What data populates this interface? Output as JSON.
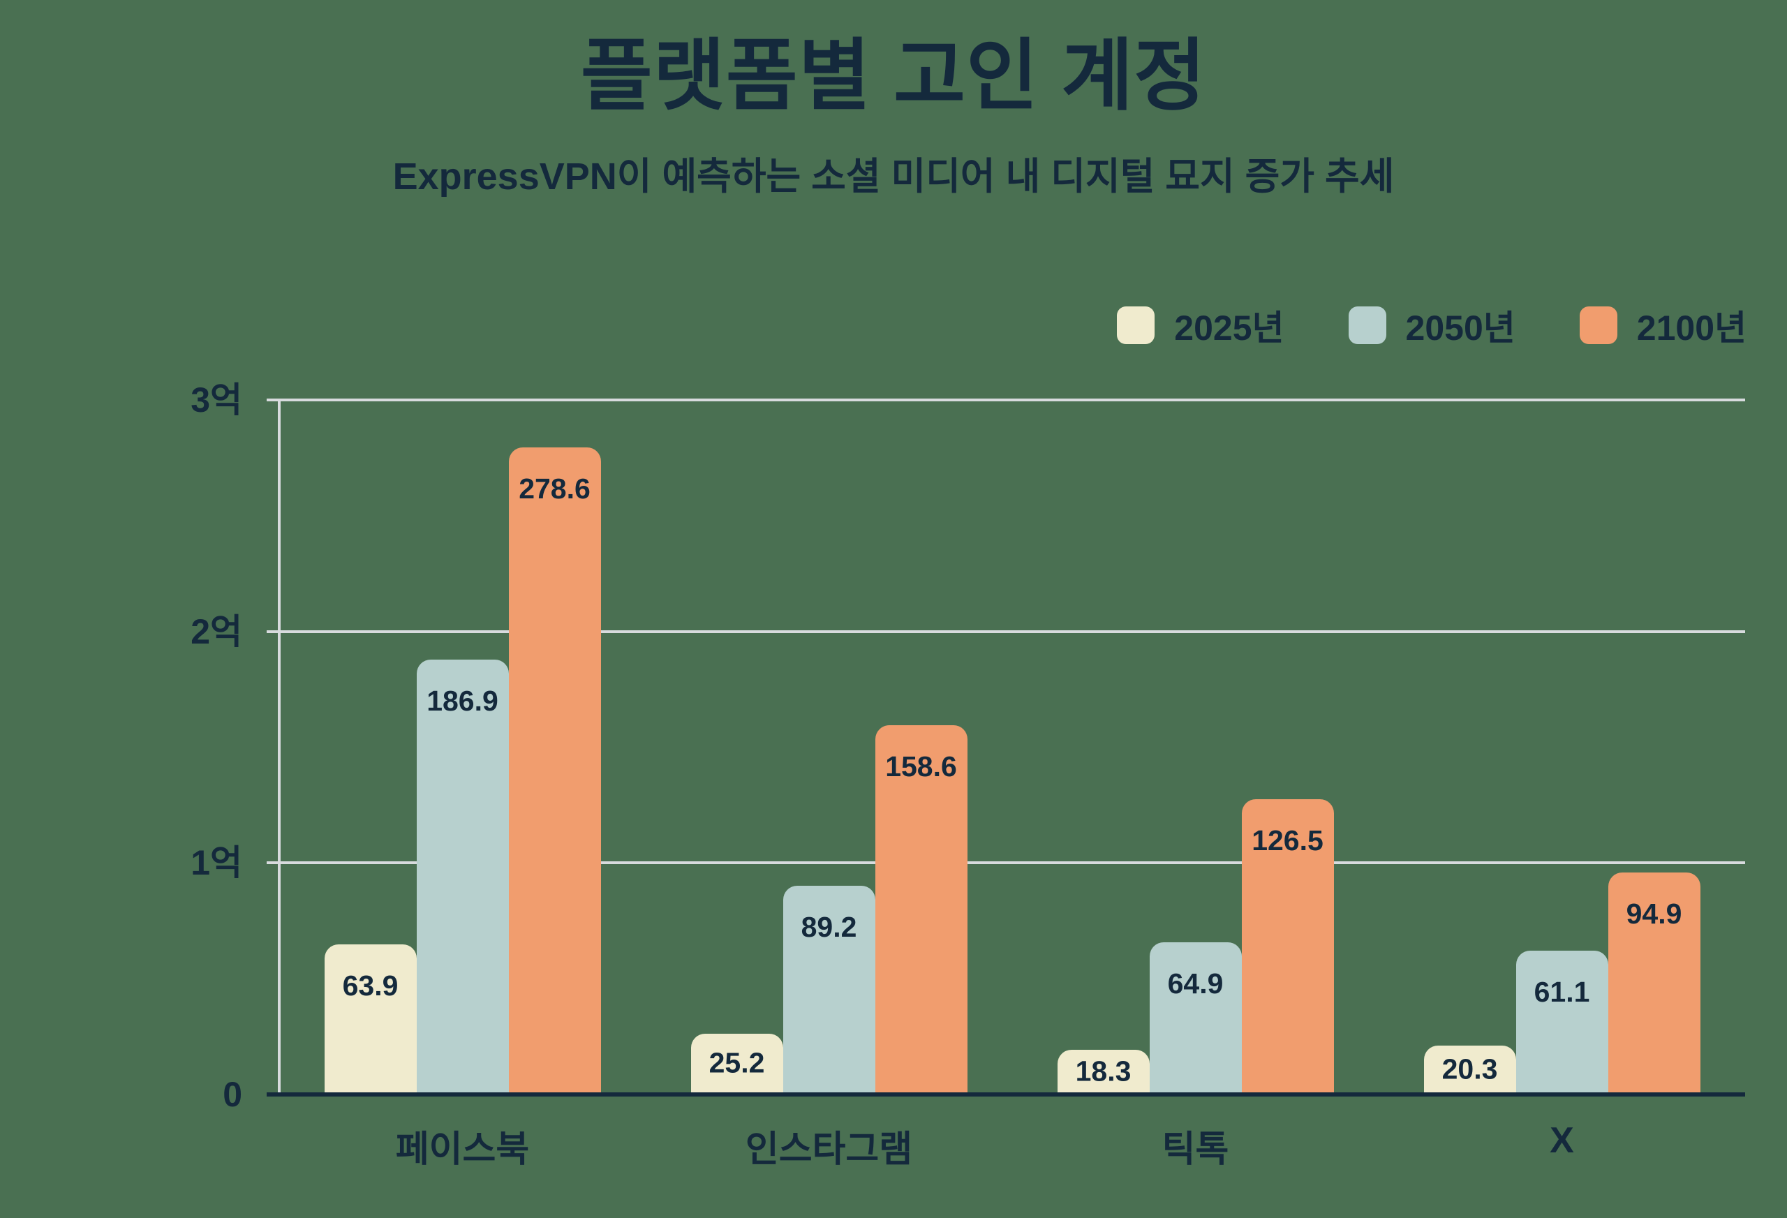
{
  "chart_data": {
    "type": "bar",
    "title": "플랫폼별 고인 계정",
    "subtitle": "ExpressVPN이 예측하는 소셜 미디어 내 디지털 묘지 증가 추세",
    "categories": [
      "페이스북",
      "인스타그램",
      "틱톡",
      "X"
    ],
    "series": [
      {
        "name": "2025년",
        "color": "#F0EBCE",
        "values": [
          63.9,
          25.2,
          18.3,
          20.3
        ]
      },
      {
        "name": "2050년",
        "color": "#B7D0CE",
        "values": [
          186.9,
          89.2,
          64.9,
          61.1
        ]
      },
      {
        "name": "2100년",
        "color": "#F19D6E",
        "values": [
          278.6,
          158.6,
          126.5,
          94.9
        ]
      }
    ],
    "y_axis": {
      "max": 300,
      "ticks": [
        {
          "value": 0,
          "label": "0"
        },
        {
          "value": 100,
          "label": "1억"
        },
        {
          "value": 200,
          "label": "2억"
        },
        {
          "value": 300,
          "label": "3억"
        }
      ]
    },
    "grid": true,
    "legend_position": "top-right",
    "value_labels": "inside-top"
  },
  "colors": {
    "background": "#4A7052",
    "text": "#14293C",
    "gridline": "#D8DBDE",
    "axis_baseline": "#14293C"
  }
}
